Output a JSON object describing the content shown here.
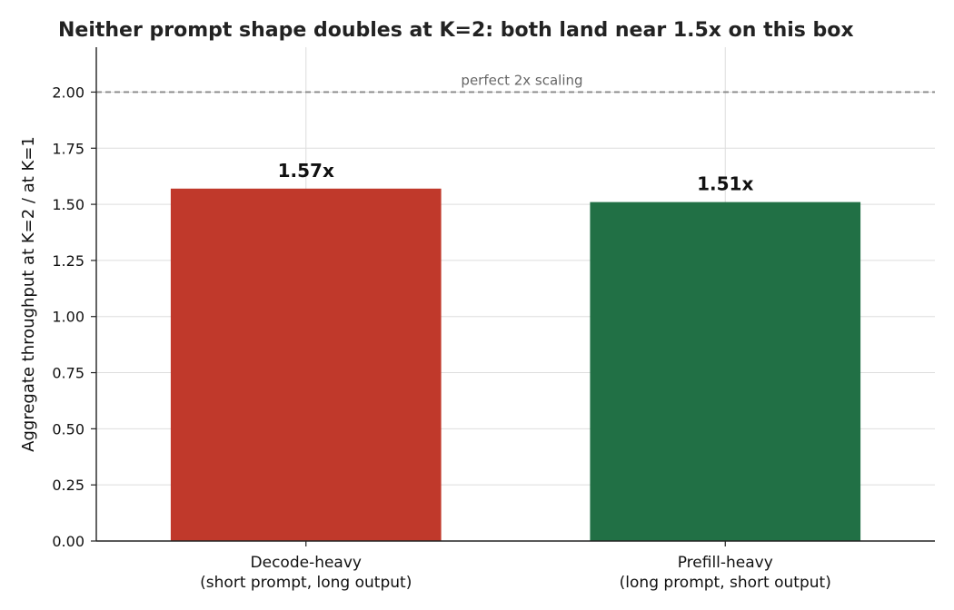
{
  "chart_data": {
    "type": "bar",
    "title": "Neither prompt shape doubles at K=2: both land near 1.5x on this box",
    "xlabel": "",
    "ylabel": "Aggregate throughput at K=2 / at K=1",
    "ylim": [
      0,
      2.2
    ],
    "yticks": [
      "0.00",
      "0.25",
      "0.50",
      "0.75",
      "1.00",
      "1.25",
      "1.50",
      "1.75",
      "2.00"
    ],
    "grid": true,
    "categories": [
      [
        "Decode-heavy",
        "(short prompt, long output)"
      ],
      [
        "Prefill-heavy",
        "(long prompt, short output)"
      ]
    ],
    "values": [
      1.57,
      1.51
    ],
    "value_labels": [
      "1.57x",
      "1.51x"
    ],
    "colors": [
      "#c0392b",
      "#217045"
    ],
    "reference_line": {
      "value": 2.0,
      "label": "perfect 2x scaling",
      "color": "#888888"
    }
  }
}
